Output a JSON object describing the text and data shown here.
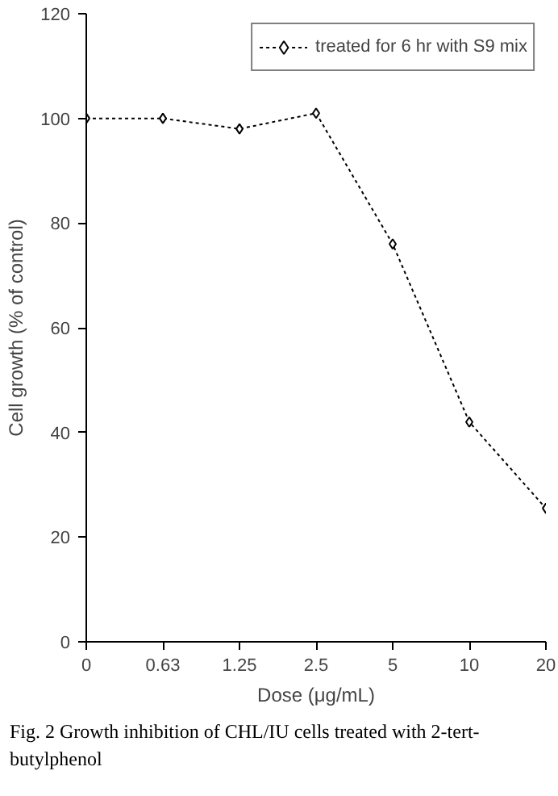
{
  "chart_data": {
    "type": "line",
    "xlabel": "Dose (μg/mL)",
    "ylabel": "Cell growth (% of control)",
    "categories": [
      "0",
      "0.63",
      "1.25",
      "2.5",
      "5",
      "10",
      "20"
    ],
    "series": [
      {
        "name": "treated for 6 hr with S9 mix",
        "color": "#000000",
        "values": [
          100,
          100,
          98,
          101,
          76,
          42,
          25.5
        ]
      }
    ],
    "ylim": [
      0,
      120
    ],
    "yticks": [
      0,
      20,
      40,
      60,
      80,
      100,
      120
    ],
    "legend": "top right",
    "marker": "diamond",
    "line_style": "dotted",
    "grid": false,
    "annotations": [
      "Fig. 2   Growth inhibition of CHL/IU cells treated with 2-tert-butylphenol"
    ]
  }
}
